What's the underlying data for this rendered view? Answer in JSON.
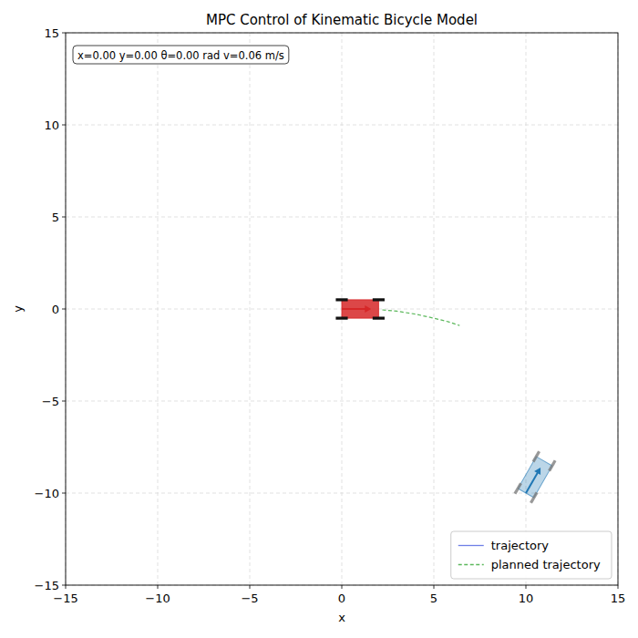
{
  "chart_data": {
    "type": "line",
    "title": "MPC Control of Kinematic Bicycle Model",
    "x_label": "x",
    "y_label": "y",
    "info": "x=0.00  y=0.00  θ=0.00 rad  v=0.06 m/s",
    "xlim": [
      -15,
      15
    ],
    "ylim": [
      -15,
      15
    ],
    "xticks": [
      -15,
      -10,
      -5,
      0,
      5,
      10,
      15
    ],
    "yticks": [
      -15,
      -10,
      -5,
      0,
      5,
      10,
      15
    ],
    "grid": true,
    "legend": "lower right",
    "series": [
      {
        "name": "trajectory",
        "color": "#6f7fe6",
        "line_style": "solid",
        "x": [
          0
        ],
        "values": [
          0
        ]
      },
      {
        "name": "planned trajectory",
        "color": "#5cb85c",
        "line_style": "dashed",
        "x": [
          2.2,
          3.0,
          4.0,
          5.0,
          5.8,
          6.4
        ],
        "values": [
          -0.05,
          -0.12,
          -0.28,
          -0.5,
          -0.7,
          -0.9
        ]
      }
    ],
    "vehicles": [
      {
        "x": 0,
        "y": 0,
        "theta": 0,
        "color": "#d62728"
      },
      {
        "x": 10,
        "y": -10,
        "theta": 1.05,
        "color": "#1f77b4"
      }
    ]
  }
}
